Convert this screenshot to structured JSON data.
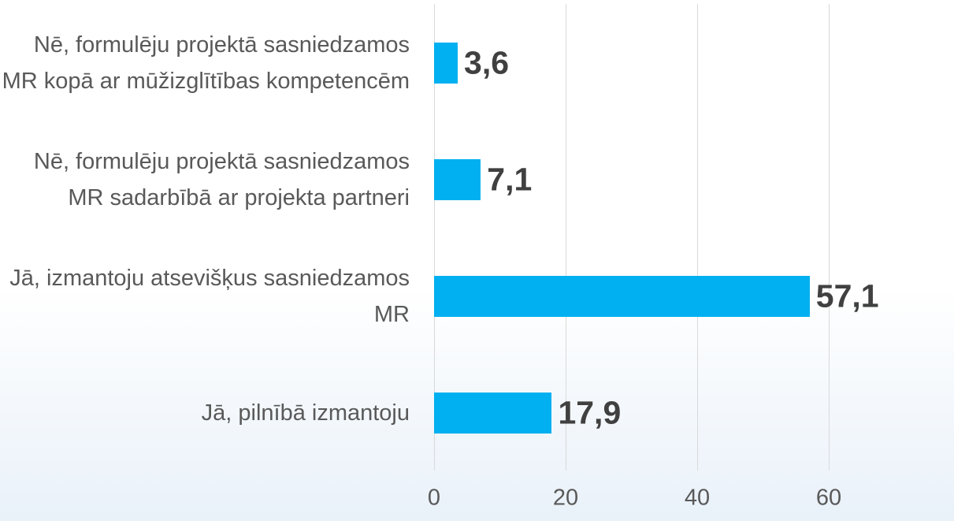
{
  "chart_data": {
    "type": "bar",
    "orientation": "horizontal",
    "categories": [
      "Nē, formulēju projektā sasniedzamos MR kopā ar mūžizglītības kompetencēm",
      "Nē, formulēju projektā sasniedzamos MR sadarbībā ar projekta partneri",
      "Jā, izmantoju atsevišķus sasniedzamos MR",
      "Jā, pilnībā izmantoju"
    ],
    "values": [
      3.6,
      7.1,
      57.1,
      17.9
    ],
    "value_labels": [
      "3,6",
      "7,1",
      "57,1",
      "17,9"
    ],
    "color": "#00b0f0",
    "xlim": [
      0,
      60
    ],
    "xticks": [
      0,
      20,
      40,
      60
    ],
    "grid": true
  }
}
